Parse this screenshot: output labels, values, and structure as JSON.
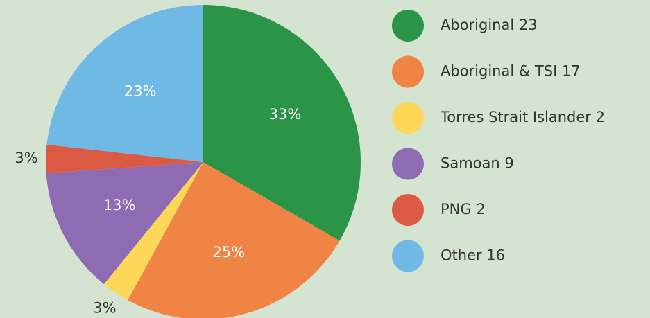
{
  "chart_data": {
    "type": "pie",
    "categories": [
      "Aboriginal 23",
      "Aboriginal & TSI 17",
      "Torres Strait Islander 2",
      "Samoan 9",
      "PNG 2",
      "Other 16"
    ],
    "values": [
      33.3,
      24.6,
      2.9,
      13.0,
      2.9,
      23.2
    ],
    "value_labels": [
      "33%",
      "25%",
      "3%",
      "13%",
      "3%",
      "23%"
    ],
    "colors": [
      "#2a9447",
      "#ef8444",
      "#fdd757",
      "#8e6bb3",
      "#db5a43",
      "#71b9e5"
    ],
    "legend": "right"
  }
}
